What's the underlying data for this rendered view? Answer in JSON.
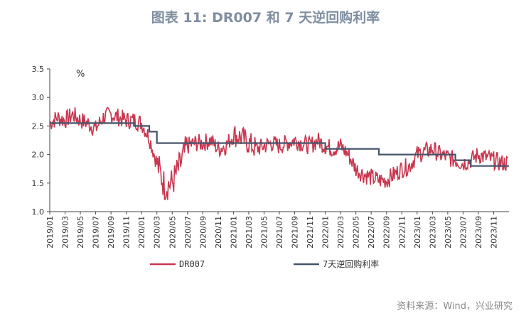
{
  "title": "图表 11: DR007 和 7 天逆回购利率",
  "source": "资料来源：Wind，兴业研究",
  "colors": {
    "dr007": "#c8374f",
    "repo": "#44546a"
  },
  "chart_data": {
    "type": "line",
    "unit": "%",
    "ylim": [
      1.0,
      3.5
    ],
    "yticks": [
      "3.5",
      "3.0",
      "2.5",
      "2.0",
      "1.5",
      "1.0"
    ],
    "xlim": [
      "2019-01",
      "2023-12"
    ],
    "xticks": [
      "2019/01",
      "2019/03",
      "2019/05",
      "2019/07",
      "2019/09",
      "2019/11",
      "2020/01",
      "2020/03",
      "2020/05",
      "2020/07",
      "2020/09",
      "2020/11",
      "2021/01",
      "2021/03",
      "2021/05",
      "2021/07",
      "2021/09",
      "2021/11",
      "2022/01",
      "2022/03",
      "2022/05",
      "2022/07",
      "2022/09",
      "2022/11",
      "2023/01",
      "2023/03",
      "2023/05",
      "2023/07",
      "2023/09",
      "2023/11"
    ],
    "legend_position": "bottom",
    "series": [
      {
        "name": "DR007",
        "x": [
          "2019-01",
          "2019-02",
          "2019-03",
          "2019-04",
          "2019-05",
          "2019-06",
          "2019-07",
          "2019-08",
          "2019-09",
          "2019-10",
          "2019-11",
          "2019-12",
          "2020-01",
          "2020-02",
          "2020-03",
          "2020-04",
          "2020-05",
          "2020-06",
          "2020-07",
          "2020-08",
          "2020-09",
          "2020-10",
          "2020-11",
          "2020-12",
          "2021-01",
          "2021-02",
          "2021-03",
          "2021-04",
          "2021-05",
          "2021-06",
          "2021-07",
          "2021-08",
          "2021-09",
          "2021-10",
          "2021-11",
          "2021-12",
          "2022-01",
          "2022-02",
          "2022-03",
          "2022-04",
          "2022-05",
          "2022-06",
          "2022-07",
          "2022-08",
          "2022-09",
          "2022-10",
          "2022-11",
          "2022-12",
          "2023-01",
          "2023-02",
          "2023-03",
          "2023-04",
          "2023-05",
          "2023-06",
          "2023-07",
          "2023-08",
          "2023-09",
          "2023-10",
          "2023-11",
          "2023-12"
        ],
        "values": [
          2.55,
          2.65,
          2.6,
          2.7,
          2.6,
          2.55,
          2.45,
          2.65,
          2.7,
          2.65,
          2.6,
          2.6,
          2.55,
          2.3,
          1.85,
          1.45,
          1.5,
          1.8,
          2.15,
          2.2,
          2.2,
          2.25,
          2.1,
          2.15,
          2.35,
          2.3,
          2.2,
          2.1,
          2.15,
          2.2,
          2.15,
          2.2,
          2.25,
          2.2,
          2.15,
          2.25,
          2.15,
          2.1,
          2.15,
          2.0,
          1.75,
          1.65,
          1.6,
          1.55,
          1.55,
          1.65,
          1.75,
          1.8,
          2.0,
          2.05,
          2.1,
          2.0,
          1.95,
          1.9,
          1.85,
          1.9,
          2.0,
          1.95,
          1.9,
          1.85
        ]
      },
      {
        "name": "7天逆回购利率",
        "steps": [
          {
            "from": "2019-01",
            "value": 2.55
          },
          {
            "from": "2019-12",
            "value": 2.5
          },
          {
            "from": "2020-02",
            "value": 2.4
          },
          {
            "from": "2020-03",
            "value": 2.2
          },
          {
            "from": "2022-01",
            "value": 2.1
          },
          {
            "from": "2022-08",
            "value": 2.0
          },
          {
            "from": "2023-06",
            "value": 1.9
          },
          {
            "from": "2023-08",
            "value": 1.8
          }
        ]
      }
    ]
  }
}
